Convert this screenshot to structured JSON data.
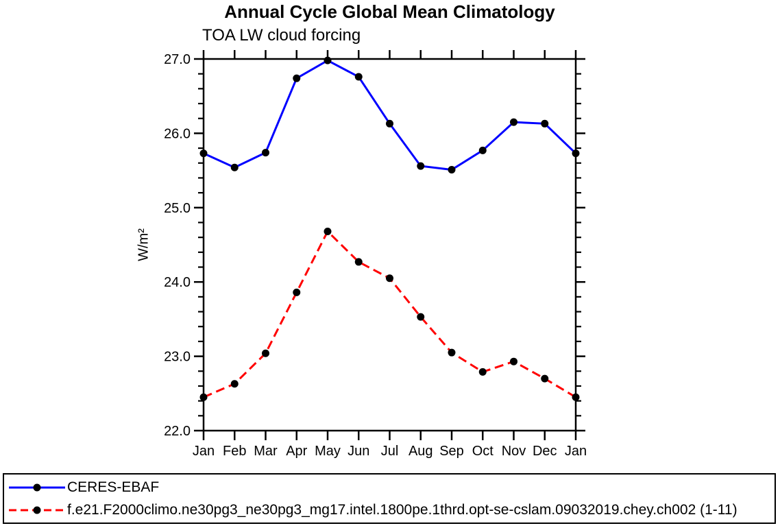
{
  "chart_data": {
    "type": "line",
    "title": "Annual Cycle Global Mean Climatology",
    "subtitle": "TOA LW cloud forcing",
    "ylabel": "W/m²",
    "xlabel": "",
    "categories": [
      "Jan",
      "Feb",
      "Mar",
      "Apr",
      "May",
      "Jun",
      "Jul",
      "Aug",
      "Sep",
      "Oct",
      "Nov",
      "Dec",
      "Jan"
    ],
    "ylim": [
      22.0,
      27.0
    ],
    "ytick_values": [
      22.0,
      23.0,
      24.0,
      25.0,
      26.0,
      27.0
    ],
    "ytick_labels": [
      "22.0",
      "23.0",
      "24.0",
      "25.0",
      "26.0",
      "27.0"
    ],
    "ytick_minor_step": 0.2,
    "grid": false,
    "frame_color": "#000000",
    "marker_color": "#000000",
    "legend_position": "bottom-box",
    "series": [
      {
        "id": "ceres-ebaf",
        "name": "CERES-EBAF",
        "color": "#0000ff",
        "line_style": "solid",
        "marker": "circle",
        "values": [
          25.73,
          25.54,
          25.74,
          26.74,
          26.98,
          26.76,
          26.13,
          25.56,
          25.51,
          25.77,
          26.15,
          26.13,
          25.73
        ]
      },
      {
        "id": "model-run",
        "name": "f.e21.F2000climo.ne30pg3_ne30pg3_mg17.intel.1800pe.1thrd.opt-se-cslam.09032019.chey.ch002 (1-11)",
        "color": "#ff0000",
        "line_style": "dashed",
        "marker": "circle",
        "values": [
          22.45,
          22.63,
          23.04,
          23.86,
          24.68,
          24.27,
          24.05,
          23.53,
          23.05,
          22.79,
          22.93,
          22.7,
          22.45
        ]
      }
    ]
  }
}
